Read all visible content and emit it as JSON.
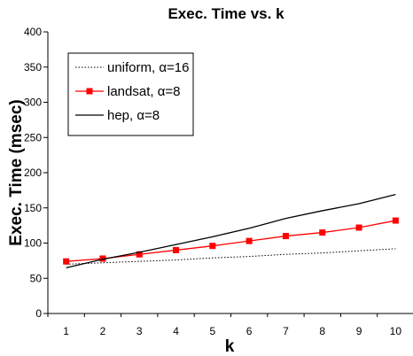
{
  "chart_data": {
    "type": "line",
    "title": "Exec. Time vs. k",
    "xlabel": "k",
    "ylabel": "Exec. Time (msec)",
    "x": [
      1,
      2,
      3,
      4,
      5,
      6,
      7,
      8,
      9,
      10
    ],
    "ylim": [
      0,
      400
    ],
    "yticks": [
      0,
      50,
      100,
      150,
      200,
      250,
      300,
      350,
      400
    ],
    "grid": false,
    "legend_position": "top-left",
    "series": [
      {
        "name": "uniform, α=16",
        "style": "dotted",
        "color": "#000000",
        "marker": "none",
        "values": [
          70,
          72,
          74,
          76,
          79,
          81,
          84,
          86,
          89,
          92
        ]
      },
      {
        "name": "landsat, α=8",
        "style": "solid",
        "color": "#ff0000",
        "marker": "square",
        "values": [
          74,
          78,
          84,
          90,
          96,
          103,
          110,
          115,
          122,
          132
        ]
      },
      {
        "name": "hep, α=8",
        "style": "solid",
        "color": "#000000",
        "marker": "none",
        "values": [
          65,
          77,
          87,
          98,
          109,
          121,
          135,
          146,
          156,
          169
        ]
      }
    ]
  }
}
